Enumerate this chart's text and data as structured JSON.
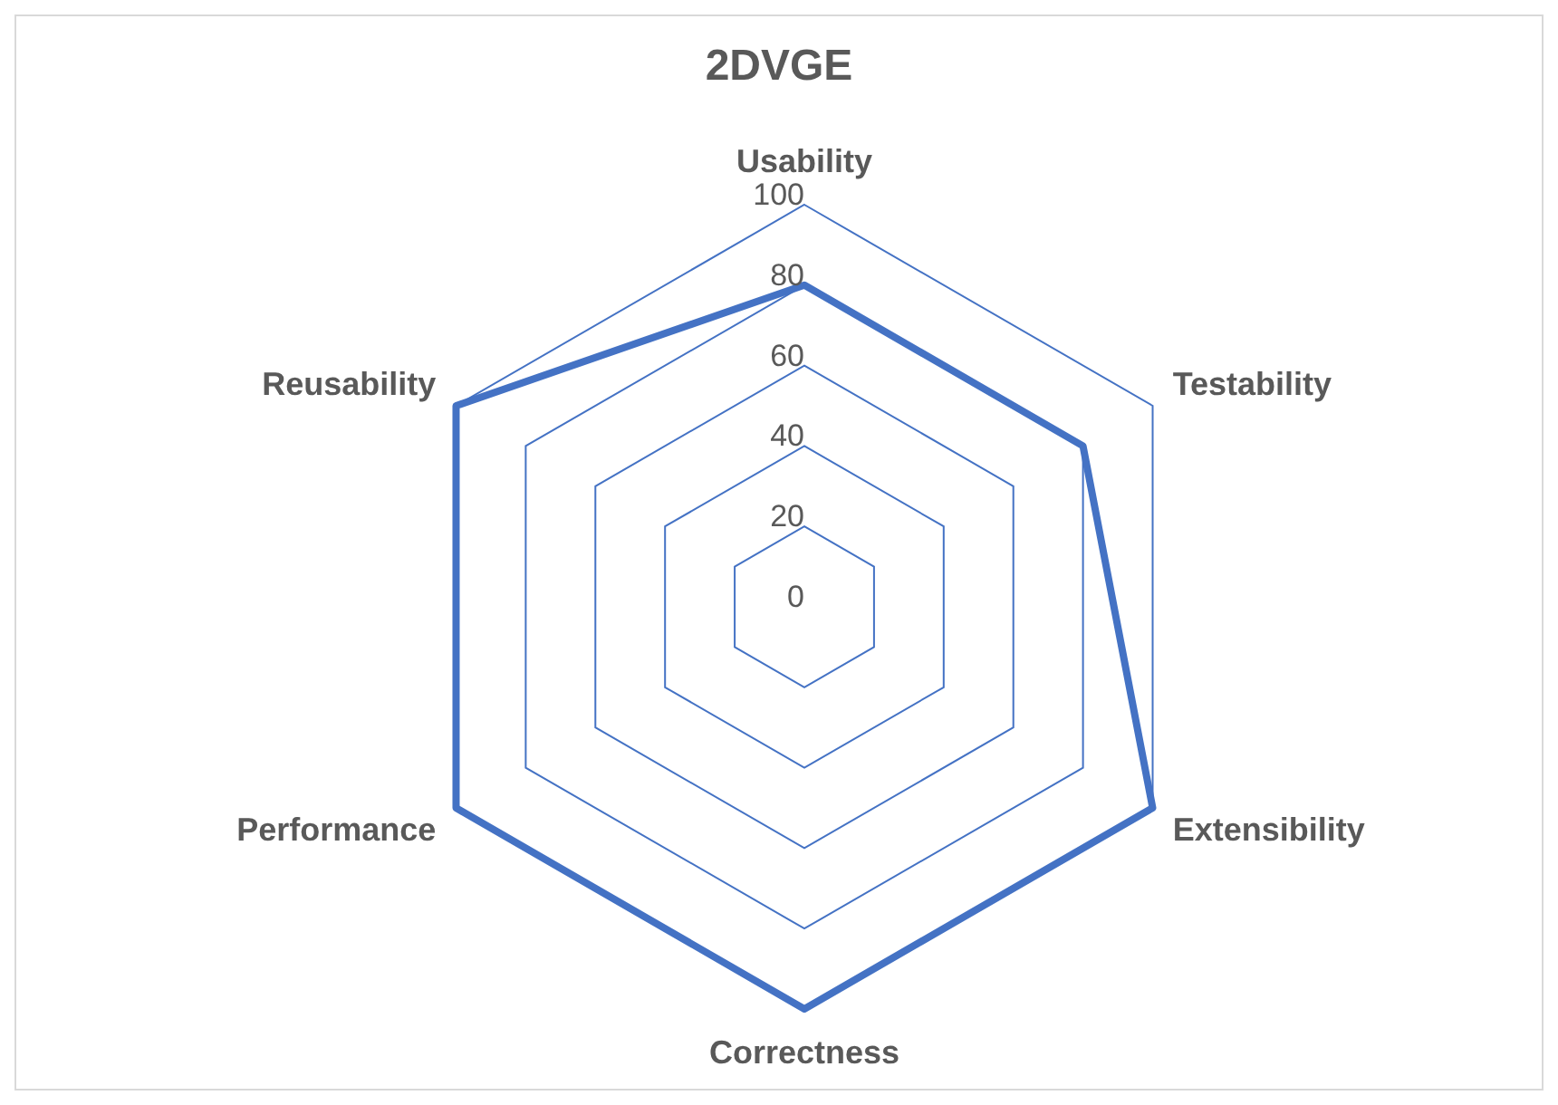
{
  "chart_data": {
    "type": "radar",
    "title": "2DVGE",
    "categories": [
      "Usability",
      "Testability",
      "Extensibility",
      "Correctness",
      "Performance",
      "Reusability"
    ],
    "series": [
      {
        "color": "#4472c4",
        "values": [
          80,
          80,
          100,
          100,
          100,
          100
        ]
      }
    ],
    "ylim": [
      0,
      100
    ],
    "yticks": [
      0,
      20,
      40,
      60,
      80,
      100
    ],
    "grid": true,
    "legend": false,
    "marker": "none"
  }
}
